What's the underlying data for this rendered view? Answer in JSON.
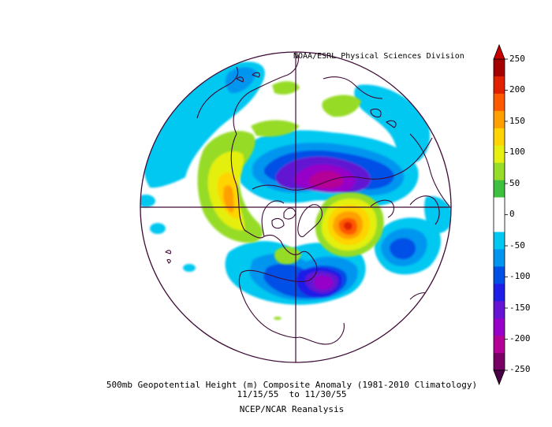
{
  "map": {
    "projection": "north-polar-stereographic",
    "variable": "500mb geopotential height anomaly",
    "credit": "NOAA/ESRL Physical Sciences Division",
    "caption": {
      "line1": "500mb Geopotential Height (m) Composite Anomaly (1981-2010 Climatology)",
      "line2": "11/15/55  to 11/30/55",
      "line3": "NCEP/NCAR Reanalysis"
    }
  },
  "colorbar": {
    "labels": [
      "250",
      "200",
      "150",
      "100",
      "50",
      "0",
      "-50",
      "-100",
      "-150",
      "-200",
      "-250"
    ],
    "colors": [
      "#a50000",
      "#e02000",
      "#ff5a00",
      "#ffa000",
      "#ffd400",
      "#e5ef10",
      "#96dc28",
      "#40c040",
      "#ffffff",
      "#ffffff",
      "#00c8f0",
      "#0096f0",
      "#0050e6",
      "#1e1ee6",
      "#6414d2",
      "#9600c8",
      "#b40096",
      "#780064"
    ],
    "top_arrow_color": "#c80000",
    "bottom_arrow_color": "#4a0046"
  }
}
